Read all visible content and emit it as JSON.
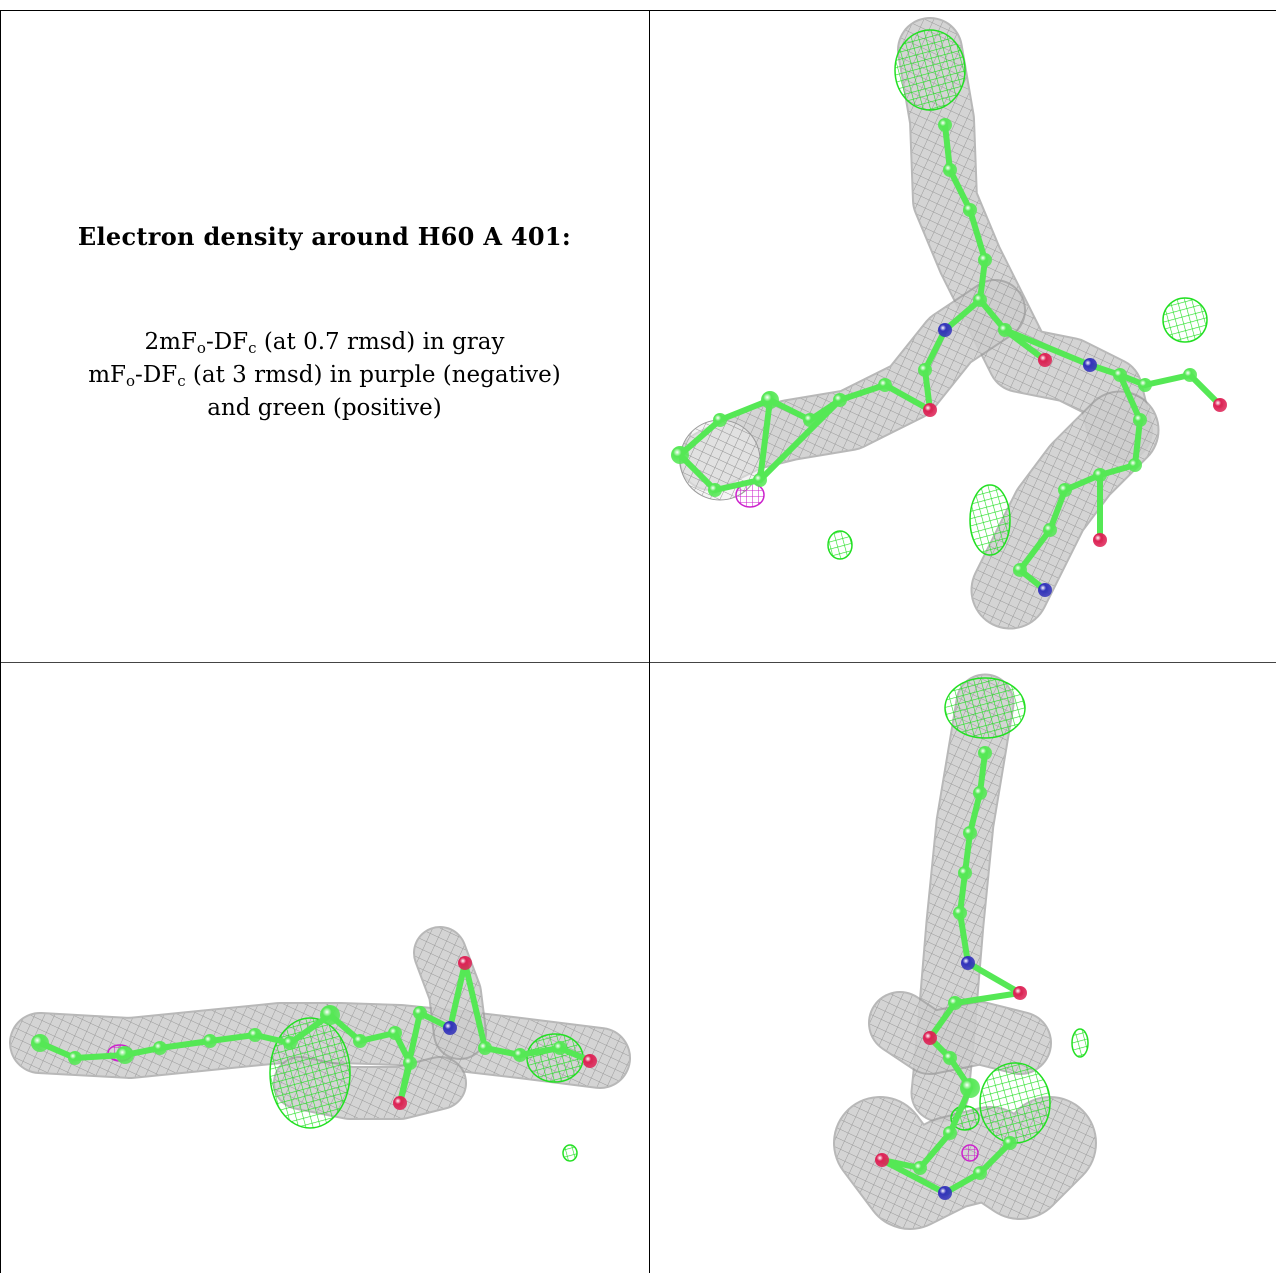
{
  "caption": {
    "title": "Electron density around H60 A 401:",
    "line1": {
      "a": "2mF",
      "sub1": "o",
      "b": "-DF",
      "sub2": "c",
      "c": " (at 0.7 rmsd) in gray"
    },
    "line2": {
      "a": "mF",
      "sub1": "o",
      "b": "-DF",
      "sub2": "c",
      "c": " (at 3 rmsd) in purple (negative)"
    },
    "line3": "and green (positive)"
  },
  "panels": [
    {
      "name": "view-1"
    },
    {
      "name": "view-2"
    },
    {
      "name": "view-3"
    }
  ],
  "colors": {
    "mesh_2fofc": "#9a9a9a",
    "mesh_positive": "#22e022",
    "mesh_negative": "#cc22cc",
    "carbon": "#55e855",
    "nitrogen": "#3333bb",
    "oxygen": "#dd2255"
  }
}
